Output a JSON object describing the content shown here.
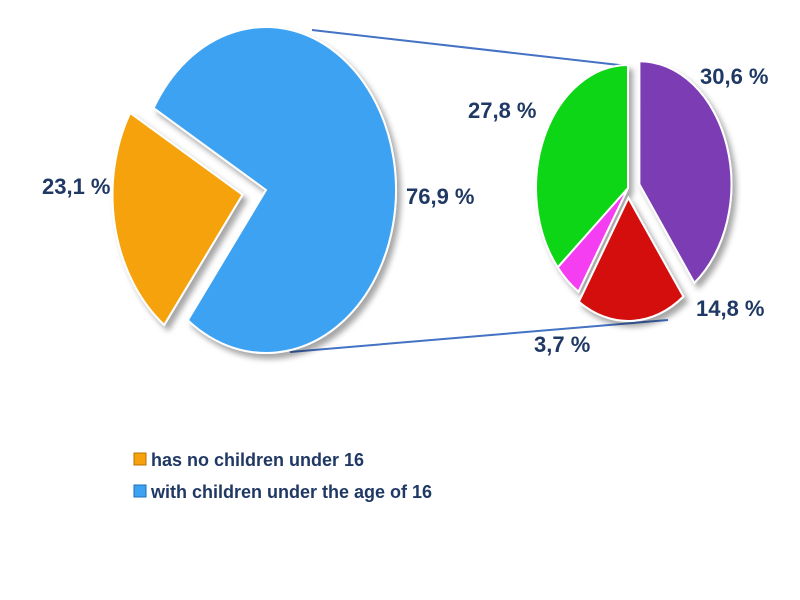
{
  "chart_data": [
    {
      "type": "pie",
      "title": "",
      "slices": [
        {
          "label": "has no children under 16",
          "value": 23.1,
          "display": "23,1 %",
          "color": "#F5A20D"
        },
        {
          "label": "with children under the age of 16",
          "value": 76.9,
          "display": "76,9 %",
          "color": "#3EA2F2"
        }
      ],
      "exploded": "has no children under 16",
      "legend": [
        {
          "label": "has no children under 16",
          "color": "#F5A20D"
        },
        {
          "label": "with children under the age of 16",
          "color": "#3EA2F2"
        }
      ],
      "legend_position": "bottom-left"
    },
    {
      "type": "pie",
      "title": "",
      "breakdown_of": "with children under the age of 16",
      "slices": [
        {
          "value": 30.6,
          "display": "30,6 %",
          "color": "#7B3DB4"
        },
        {
          "value": 14.8,
          "display": "14,8 %",
          "color": "#D40F0F"
        },
        {
          "value": 3.7,
          "display": "3,7 %",
          "color": "#F53DF2"
        },
        {
          "value": 27.8,
          "display": "27,8 %",
          "color": "#0FD615"
        }
      ],
      "exploded_indices": [
        0,
        1
      ]
    }
  ]
}
